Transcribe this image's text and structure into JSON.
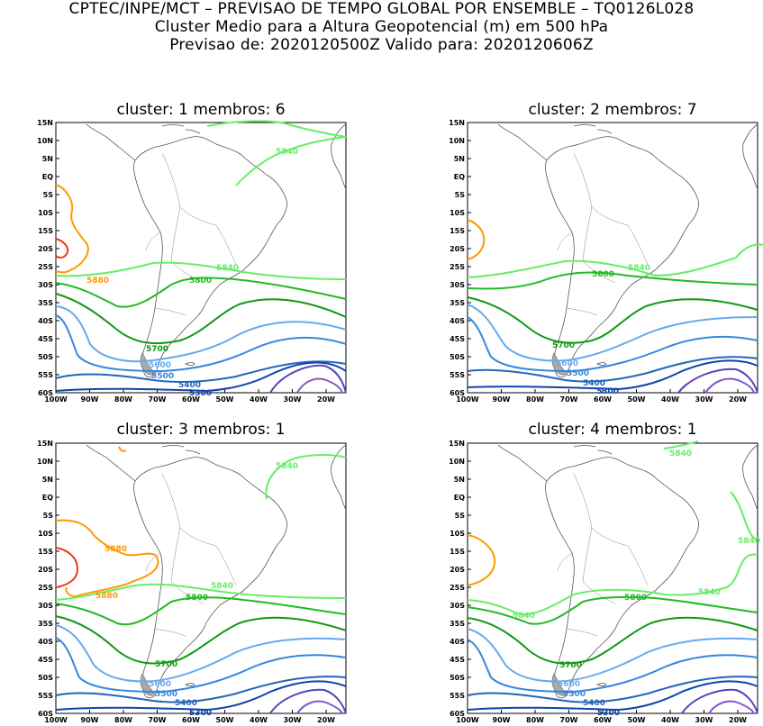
{
  "header": {
    "line1": "CPTEC/INPE/MCT – PREVISAO DE TEMPO GLOBAL POR ENSEMBLE – TQ0126L028",
    "line2": "Cluster Medio para a Altura Geopotencial (m) em 500 hPa",
    "line3": "Previsao de: 2020120500Z    Valido para: 2020120606Z"
  },
  "axes": {
    "lat_labels": [
      "15N",
      "10N",
      "5N",
      "EQ",
      "5S",
      "10S",
      "15S",
      "20S",
      "25S",
      "30S",
      "35S",
      "40S",
      "45S",
      "50S",
      "55S",
      "60S"
    ],
    "lon_labels": [
      "100W",
      "90W",
      "80W",
      "70W",
      "60W",
      "50W",
      "40W",
      "30W",
      "20W"
    ]
  },
  "contour_colors": {
    "5880": "#ff9900",
    "5900": "#e6391b",
    "5840": "#66ee66",
    "5800": "#22bb22",
    "5700": "#119911",
    "5600": "#66aaee",
    "5500": "#3388dd",
    "5400": "#2266bb",
    "5300": "#1144aa",
    "5200": "#5544bb",
    "5100": "#8855cc"
  },
  "panels": [
    {
      "title": "cluster: 1   membros: 6",
      "labels": [
        {
          "text": "5840",
          "color": "#66ee66"
        },
        {
          "text": "5880",
          "color": "#ff9900"
        },
        {
          "text": "5840",
          "color": "#66ee66"
        },
        {
          "text": "5800",
          "color": "#22bb22"
        },
        {
          "text": "5700",
          "color": "#119911"
        },
        {
          "text": "5600",
          "color": "#66aaee"
        },
        {
          "text": "5500",
          "color": "#3388dd"
        },
        {
          "text": "5400",
          "color": "#2266bb"
        },
        {
          "text": "5300",
          "color": "#1144aa"
        }
      ]
    },
    {
      "title": "cluster: 2   membros: 7",
      "labels": [
        {
          "text": "5840",
          "color": "#66ee66"
        },
        {
          "text": "5800",
          "color": "#22bb22"
        },
        {
          "text": "5700",
          "color": "#119911"
        },
        {
          "text": "5600",
          "color": "#66aaee"
        },
        {
          "text": "5500",
          "color": "#3388dd"
        },
        {
          "text": "5400",
          "color": "#2266bb"
        },
        {
          "text": "5300",
          "color": "#1144aa"
        }
      ]
    },
    {
      "title": "cluster: 3   membros: 1",
      "labels": [
        {
          "text": "5840",
          "color": "#66ee66"
        },
        {
          "text": "5880",
          "color": "#ff9900"
        },
        {
          "text": "5880",
          "color": "#ff9900"
        },
        {
          "text": "5840",
          "color": "#66ee66"
        },
        {
          "text": "5800",
          "color": "#22bb22"
        },
        {
          "text": "5700",
          "color": "#119911"
        },
        {
          "text": "5600",
          "color": "#66aaee"
        },
        {
          "text": "5500",
          "color": "#3388dd"
        },
        {
          "text": "5400",
          "color": "#2266bb"
        },
        {
          "text": "5300",
          "color": "#1144aa"
        }
      ]
    },
    {
      "title": "cluster: 4   membros: 1",
      "labels": [
        {
          "text": "5840",
          "color": "#66ee66"
        },
        {
          "text": "5840",
          "color": "#66ee66"
        },
        {
          "text": "5840",
          "color": "#66ee66"
        },
        {
          "text": "5840",
          "color": "#66ee66"
        },
        {
          "text": "5800",
          "color": "#22bb22"
        },
        {
          "text": "5700",
          "color": "#119911"
        },
        {
          "text": "5600",
          "color": "#66aaee"
        },
        {
          "text": "5500",
          "color": "#3388dd"
        },
        {
          "text": "5400",
          "color": "#2266bb"
        },
        {
          "text": "5300",
          "color": "#1144aa"
        }
      ]
    }
  ]
}
